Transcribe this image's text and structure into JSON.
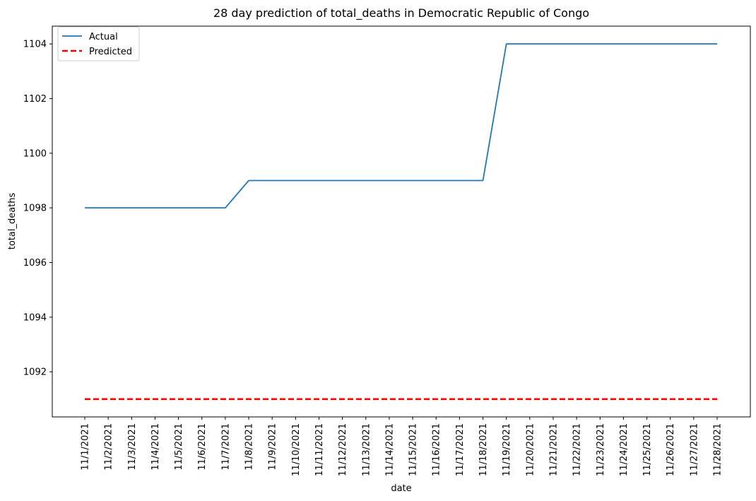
{
  "chart_data": {
    "type": "line",
    "title": "28 day prediction of total_deaths in Democratic Republic of Congo",
    "xlabel": "date",
    "ylabel": "total_deaths",
    "categories": [
      "11/1/2021",
      "11/2/2021",
      "11/3/2021",
      "11/4/2021",
      "11/5/2021",
      "11/6/2021",
      "11/7/2021",
      "11/8/2021",
      "11/9/2021",
      "11/10/2021",
      "11/11/2021",
      "11/12/2021",
      "11/13/2021",
      "11/14/2021",
      "11/15/2021",
      "11/16/2021",
      "11/17/2021",
      "11/18/2021",
      "11/19/2021",
      "11/20/2021",
      "11/21/2021",
      "11/22/2021",
      "11/23/2021",
      "11/24/2021",
      "11/25/2021",
      "11/26/2021",
      "11/27/2021",
      "11/28/2021"
    ],
    "yticks": [
      1092,
      1094,
      1096,
      1098,
      1100,
      1102,
      1104
    ],
    "ylim": [
      1090.35,
      1104.65
    ],
    "grid": false,
    "legend_position": "top-left",
    "series": [
      {
        "name": "Actual",
        "color": "#1f77b4",
        "style": "solid",
        "values": [
          1098,
          1098,
          1098,
          1098,
          1098,
          1098,
          1098,
          1099,
          1099,
          1099,
          1099,
          1099,
          1099,
          1099,
          1099,
          1099,
          1099,
          1099,
          1104,
          1104,
          1104,
          1104,
          1104,
          1104,
          1104,
          1104,
          1104,
          1104
        ]
      },
      {
        "name": "Predicted",
        "color": "#ff0000",
        "style": "dashed",
        "values": [
          1091,
          1091,
          1091,
          1091,
          1091,
          1091,
          1091,
          1091,
          1091,
          1091,
          1091,
          1091,
          1091,
          1091,
          1091,
          1091,
          1091,
          1091,
          1091,
          1091,
          1091,
          1091,
          1091,
          1091,
          1091,
          1091,
          1091,
          1091
        ]
      }
    ]
  }
}
